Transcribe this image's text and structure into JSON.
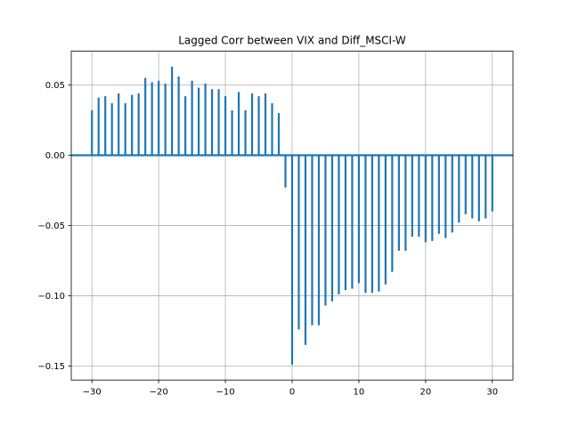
{
  "chart_data": {
    "type": "bar",
    "title": "Lagged Corr between VIX and Diff_MSCI-W",
    "xlabel": "",
    "ylabel": "",
    "xlim": [
      -33.1,
      33.1
    ],
    "ylim": [
      -0.16,
      0.074
    ],
    "grid": true,
    "color": "#1f77b4",
    "xticks": [
      -30,
      -20,
      -10,
      0,
      10,
      20,
      30
    ],
    "xtick_labels": [
      "−30",
      "−20",
      "−10",
      "0",
      "10",
      "20",
      "30"
    ],
    "yticks": [
      -0.15,
      -0.1,
      -0.05,
      0.0,
      0.05
    ],
    "ytick_labels": [
      "−0.15",
      "−0.10",
      "−0.05",
      "0.00",
      "0.05"
    ],
    "x": [
      -30,
      -29,
      -28,
      -27,
      -26,
      -25,
      -24,
      -23,
      -22,
      -21,
      -20,
      -19,
      -18,
      -17,
      -16,
      -15,
      -14,
      -13,
      -12,
      -11,
      -10,
      -9,
      -8,
      -7,
      -6,
      -5,
      -4,
      -3,
      -2,
      -1,
      0,
      1,
      2,
      3,
      4,
      5,
      6,
      7,
      8,
      9,
      10,
      11,
      12,
      13,
      14,
      15,
      16,
      17,
      18,
      19,
      20,
      21,
      22,
      23,
      24,
      25,
      26,
      27,
      28,
      29,
      30
    ],
    "values": [
      0.032,
      0.041,
      0.042,
      0.037,
      0.044,
      0.037,
      0.043,
      0.044,
      0.055,
      0.052,
      0.053,
      0.051,
      0.063,
      0.056,
      0.042,
      0.053,
      0.048,
      0.051,
      0.047,
      0.047,
      0.042,
      0.032,
      0.045,
      0.032,
      0.044,
      0.042,
      0.044,
      0.037,
      0.03,
      -0.023,
      -0.149,
      -0.124,
      -0.135,
      -0.121,
      -0.121,
      -0.107,
      -0.104,
      -0.099,
      -0.096,
      -0.095,
      -0.091,
      -0.098,
      -0.098,
      -0.097,
      -0.092,
      -0.083,
      -0.068,
      -0.068,
      -0.058,
      -0.058,
      -0.062,
      -0.061,
      -0.056,
      -0.059,
      -0.055,
      -0.048,
      -0.042,
      -0.045,
      -0.047,
      -0.045,
      -0.04
    ]
  }
}
